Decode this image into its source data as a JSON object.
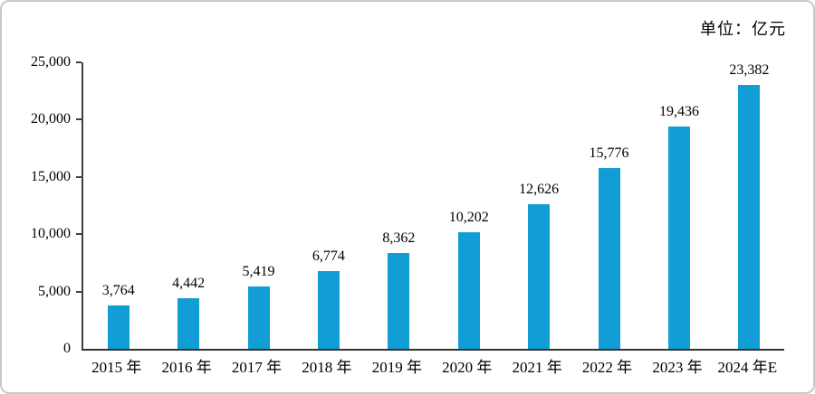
{
  "unit_label": "单位：亿元",
  "chart_data": {
    "type": "bar",
    "title": "",
    "xlabel": "",
    "ylabel": "",
    "unit_label": "单位：亿元",
    "categories": [
      "2015 年",
      "2016 年",
      "2017 年",
      "2018 年",
      "2019 年",
      "2020 年",
      "2021 年",
      "2022 年",
      "2023 年",
      "2024 年E"
    ],
    "values": [
      3764,
      4442,
      5419,
      6774,
      8362,
      10202,
      12626,
      15776,
      19436,
      23382
    ],
    "data_labels": [
      "3,764",
      "4,442",
      "5,419",
      "6,774",
      "8,362",
      "10,202",
      "12,626",
      "15,776",
      "19,436",
      "23,382"
    ],
    "ylim": [
      0,
      25000
    ],
    "yticks": [
      0,
      5000,
      10000,
      15000,
      20000,
      25000
    ],
    "ytick_labels": [
      "0",
      "5,000",
      "10,000",
      "15,000",
      "20,000",
      "25,000"
    ],
    "grid": false,
    "legend": "none",
    "bar_color": "#119ED6",
    "axis_color": "#404040"
  }
}
